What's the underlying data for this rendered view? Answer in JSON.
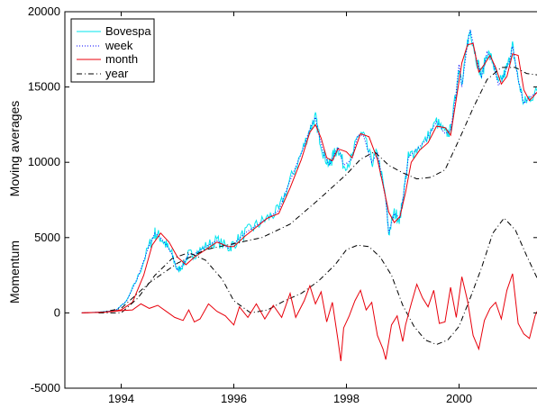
{
  "chart_data": {
    "type": "line",
    "title": "",
    "ylabel_top": "Moving averages",
    "ylabel_bottom": "Momentum",
    "xlim": [
      1993.0,
      2001.4
    ],
    "ylim": [
      -5000,
      20000
    ],
    "x_ticks": [
      1994,
      1996,
      1998,
      2000
    ],
    "y_ticks": [
      -5000,
      0,
      5000,
      10000,
      15000,
      20000
    ],
    "grid": false,
    "legend_position": "top-left",
    "legend": [
      {
        "label": "Bovespa",
        "color": "#00e5ee",
        "style": "solid"
      },
      {
        "label": "week",
        "color": "#0000ff",
        "style": "dotted"
      },
      {
        "label": "month",
        "color": "#e8000b",
        "style": "solid"
      },
      {
        "label": "year",
        "color": "#000000",
        "style": "dashdot"
      }
    ],
    "series": [
      {
        "name": "Bovespa",
        "color": "#00e5ee",
        "style": "solid",
        "noise": 450,
        "x": [
          1993.3,
          1993.6,
          1993.9,
          1994.1,
          1994.3,
          1994.5,
          1994.6,
          1994.7,
          1994.8,
          1994.9,
          1995.0,
          1995.1,
          1995.2,
          1995.3,
          1995.5,
          1995.7,
          1995.9,
          1996.0,
          1996.2,
          1996.4,
          1996.6,
          1996.8,
          1997.0,
          1997.2,
          1997.35,
          1997.45,
          1997.5,
          1997.6,
          1997.7,
          1997.75,
          1997.85,
          1997.95,
          1998.1,
          1998.2,
          1998.3,
          1998.45,
          1998.55,
          1998.7,
          1998.75,
          1998.85,
          1998.95,
          1999.0,
          1999.1,
          1999.2,
          1999.4,
          1999.6,
          1999.75,
          1999.85,
          1999.95,
          2000.0,
          2000.05,
          2000.15,
          2000.2,
          2000.3,
          2000.4,
          2000.5,
          2000.6,
          2000.7,
          2000.8,
          2000.9,
          2000.95,
          2001.05,
          2001.15,
          2001.25,
          2001.4
        ],
        "y": [
          0,
          50,
          150,
          800,
          2400,
          4500,
          5300,
          5000,
          4500,
          3900,
          2800,
          3200,
          3900,
          3900,
          4400,
          4800,
          4300,
          4600,
          5300,
          5800,
          6300,
          6800,
          8800,
          10600,
          12200,
          13000,
          12000,
          10500,
          9800,
          10300,
          11000,
          9800,
          10200,
          11800,
          11800,
          10000,
          10600,
          7500,
          5300,
          6600,
          6300,
          7500,
          10300,
          10700,
          11400,
          12700,
          11900,
          12100,
          14700,
          16500,
          15000,
          17900,
          18800,
          17000,
          15700,
          17300,
          16700,
          15100,
          15800,
          16800,
          17700,
          15500,
          13900,
          14300,
          14700
        ]
      },
      {
        "name": "week",
        "color": "#0000ff",
        "style": "dotted",
        "noise": 0,
        "x": [
          1993.3,
          1993.6,
          1993.9,
          1994.1,
          1994.3,
          1994.5,
          1994.6,
          1994.7,
          1994.8,
          1994.9,
          1995.0,
          1995.1,
          1995.2,
          1995.3,
          1995.5,
          1995.7,
          1995.9,
          1996.0,
          1996.2,
          1996.4,
          1996.6,
          1996.8,
          1997.0,
          1997.2,
          1997.35,
          1997.45,
          1997.5,
          1997.6,
          1997.7,
          1997.75,
          1997.85,
          1997.95,
          1998.1,
          1998.2,
          1998.3,
          1998.45,
          1998.55,
          1998.7,
          1998.75,
          1998.85,
          1998.95,
          1999.0,
          1999.1,
          1999.2,
          1999.4,
          1999.6,
          1999.75,
          1999.85,
          1999.95,
          2000.0,
          2000.05,
          2000.15,
          2000.2,
          2000.3,
          2000.4,
          2000.5,
          2000.6,
          2000.7,
          2000.8,
          2000.9,
          2000.95,
          2001.05,
          2001.15,
          2001.25,
          2001.4
        ],
        "y": [
          0,
          50,
          150,
          800,
          2400,
          4500,
          5300,
          5000,
          4500,
          3900,
          2800,
          3200,
          3900,
          3900,
          4400,
          4800,
          4300,
          4600,
          5300,
          5800,
          6300,
          6800,
          8800,
          10600,
          12200,
          13000,
          12000,
          10500,
          9800,
          10300,
          11000,
          9800,
          10200,
          11800,
          11800,
          10000,
          10600,
          7500,
          5300,
          6600,
          6300,
          7500,
          10300,
          10700,
          11400,
          12700,
          11900,
          12100,
          14700,
          16500,
          15000,
          17900,
          18800,
          17000,
          15700,
          17300,
          16700,
          15100,
          15800,
          16800,
          17700,
          15500,
          13900,
          14300,
          14700
        ]
      },
      {
        "name": "month",
        "color": "#e8000b",
        "style": "solid",
        "noise": 0,
        "x": [
          1993.3,
          1993.7,
          1994.0,
          1994.2,
          1994.4,
          1994.55,
          1994.7,
          1994.85,
          1995.0,
          1995.15,
          1995.3,
          1995.5,
          1995.7,
          1995.9,
          1996.0,
          1996.2,
          1996.4,
          1996.6,
          1996.8,
          1997.0,
          1997.2,
          1997.35,
          1997.45,
          1997.55,
          1997.65,
          1997.75,
          1997.85,
          1998.0,
          1998.1,
          1998.25,
          1998.4,
          1998.55,
          1998.65,
          1998.75,
          1998.85,
          1998.95,
          1999.05,
          1999.15,
          1999.3,
          1999.45,
          1999.6,
          1999.75,
          1999.85,
          1999.95,
          2000.05,
          2000.15,
          2000.25,
          2000.35,
          2000.45,
          2000.55,
          2000.65,
          2000.75,
          2000.85,
          2000.95,
          2001.05,
          2001.15,
          2001.25,
          2001.4
        ],
        "y": [
          0,
          50,
          200,
          700,
          2500,
          4500,
          5300,
          4700,
          3700,
          3200,
          3700,
          4200,
          4700,
          4400,
          4400,
          5100,
          5700,
          6300,
          6600,
          8300,
          10200,
          12000,
          12500,
          11600,
          10300,
          10100,
          10900,
          10700,
          10300,
          11900,
          11700,
          10200,
          8500,
          6700,
          6000,
          6400,
          8000,
          10000,
          10800,
          11300,
          12400,
          12300,
          11800,
          14200,
          16600,
          17800,
          17900,
          16000,
          16500,
          17100,
          16300,
          15200,
          15700,
          17200,
          17100,
          14800,
          14100,
          14700
        ]
      },
      {
        "name": "year",
        "color": "#000000",
        "style": "dashdot",
        "noise": 0,
        "x": [
          1993.6,
          1994.0,
          1994.5,
          1995.0,
          1995.5,
          1996.0,
          1996.5,
          1997.0,
          1997.5,
          1998.0,
          1998.25,
          1998.5,
          1998.75,
          1999.0,
          1999.25,
          1999.5,
          1999.75,
          2000.0,
          2000.25,
          2000.5,
          2000.75,
          2001.0,
          2001.2,
          2001.4
        ],
        "y": [
          0,
          300,
          2000,
          3300,
          4200,
          4600,
          5000,
          5900,
          7500,
          9200,
          10200,
          10700,
          9800,
          9300,
          8900,
          9000,
          9500,
          11500,
          13600,
          15500,
          16300,
          16300,
          15900,
          15800
        ]
      },
      {
        "name": "year momentum",
        "color": "#000000",
        "style": "dashdot",
        "noise": 0,
        "x": [
          1993.6,
          1994.0,
          1994.3,
          1994.6,
          1994.9,
          1995.2,
          1995.5,
          1995.8,
          1996.0,
          1996.3,
          1996.6,
          1996.9,
          1997.2,
          1997.5,
          1997.8,
          1998.0,
          1998.2,
          1998.4,
          1998.6,
          1998.8,
          1999.0,
          1999.2,
          1999.4,
          1999.6,
          1999.8,
          2000.0,
          2000.2,
          2000.4,
          2000.6,
          2000.8,
          2001.0,
          2001.2,
          2001.4
        ],
        "y": [
          0,
          0,
          1000,
          2500,
          3600,
          4000,
          3500,
          2200,
          800,
          0,
          200,
          800,
          1300,
          2100,
          3200,
          4200,
          4500,
          4400,
          3700,
          2500,
          500,
          -900,
          -1800,
          -2100,
          -1800,
          -900,
          1000,
          3000,
          5300,
          6300,
          5500,
          3800,
          2200
        ]
      },
      {
        "name": "month momentum",
        "color": "#e8000b",
        "style": "solid",
        "noise": 0,
        "x": [
          1993.3,
          1993.7,
          1994.0,
          1994.2,
          1994.35,
          1994.5,
          1994.65,
          1994.8,
          1994.95,
          1995.1,
          1995.2,
          1995.3,
          1995.4,
          1995.55,
          1995.7,
          1995.85,
          1996.0,
          1996.1,
          1996.25,
          1996.4,
          1996.55,
          1996.7,
          1996.85,
          1997.0,
          1997.1,
          1997.25,
          1997.35,
          1997.45,
          1997.55,
          1997.65,
          1997.75,
          1997.85,
          1997.9,
          1997.95,
          1998.05,
          1998.15,
          1998.25,
          1998.35,
          1998.45,
          1998.55,
          1998.65,
          1998.7,
          1998.8,
          1998.9,
          1999.0,
          1999.05,
          1999.15,
          1999.25,
          1999.35,
          1999.45,
          1999.55,
          1999.65,
          1999.75,
          1999.85,
          1999.95,
          2000.05,
          2000.15,
          2000.25,
          2000.35,
          2000.45,
          2000.55,
          2000.65,
          2000.75,
          2000.85,
          2000.95,
          2001.05,
          2001.15,
          2001.25,
          2001.35,
          2001.4
        ],
        "y": [
          0,
          50,
          150,
          200,
          600,
          300,
          500,
          100,
          -300,
          -500,
          200,
          -600,
          -400,
          600,
          100,
          -200,
          -800,
          400,
          -300,
          600,
          -400,
          500,
          -300,
          1300,
          -300,
          800,
          1800,
          600,
          1400,
          -600,
          700,
          -1800,
          -3200,
          -1000,
          -200,
          800,
          1500,
          200,
          700,
          -1500,
          -2400,
          -3100,
          -800,
          -200,
          -1900,
          -800,
          600,
          1900,
          1000,
          400,
          1500,
          -700,
          -600,
          1700,
          -300,
          2400,
          800,
          -1500,
          -2400,
          -500,
          300,
          700,
          -400,
          1500,
          2600,
          -700,
          -1400,
          -1700,
          -200,
          200
        ]
      }
    ]
  }
}
